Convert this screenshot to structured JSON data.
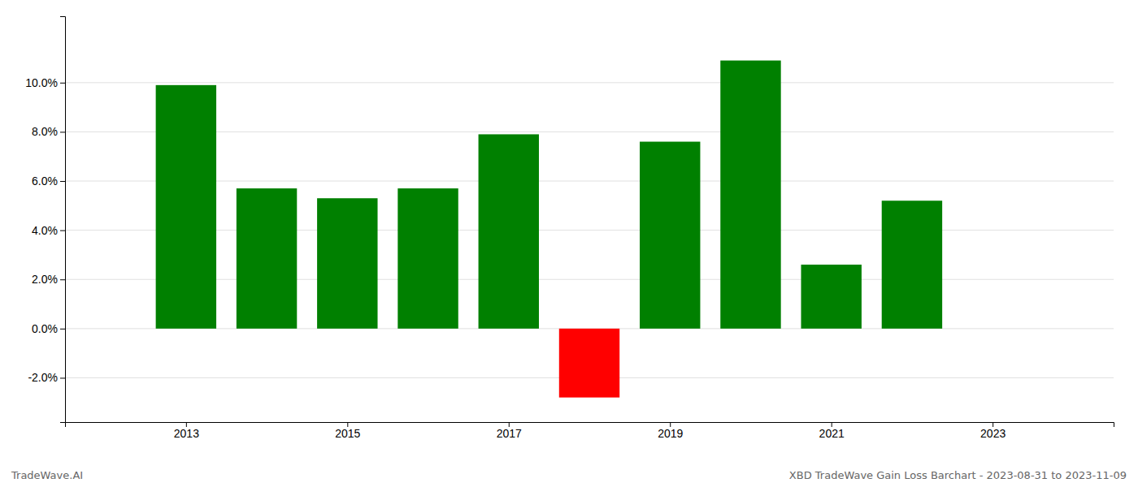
{
  "chart_data": {
    "type": "bar",
    "x": [
      2013,
      2014,
      2015,
      2016,
      2017,
      2018,
      2019,
      2020,
      2021,
      2022
    ],
    "values": [
      0.099,
      0.057,
      0.053,
      0.057,
      0.079,
      -0.028,
      0.076,
      0.109,
      0.026,
      0.052
    ],
    "colors": [
      "#008000",
      "#008000",
      "#008000",
      "#008000",
      "#008000",
      "#ff0000",
      "#008000",
      "#008000",
      "#008000",
      "#008000"
    ],
    "xlim": [
      2011.5,
      2024.5
    ],
    "xticks": [
      2013,
      2015,
      2017,
      2019,
      2021,
      2023
    ],
    "ylim": [
      -0.038,
      0.127
    ],
    "yticks": [
      {
        "value": -0.02,
        "label": "-2.0%"
      },
      {
        "value": 0.0,
        "label": "0.0%"
      },
      {
        "value": 0.02,
        "label": "2.0%"
      },
      {
        "value": 0.04,
        "label": "4.0%"
      },
      {
        "value": 0.06,
        "label": "6.0%"
      },
      {
        "value": 0.08,
        "label": "8.0%"
      },
      {
        "value": 0.1,
        "label": "10.0%"
      }
    ],
    "grid": true,
    "annotations": [
      "TradeWave.AI",
      "XBD TradeWave Gain Loss Barchart - 2023-08-31 to 2023-11-09"
    ]
  }
}
